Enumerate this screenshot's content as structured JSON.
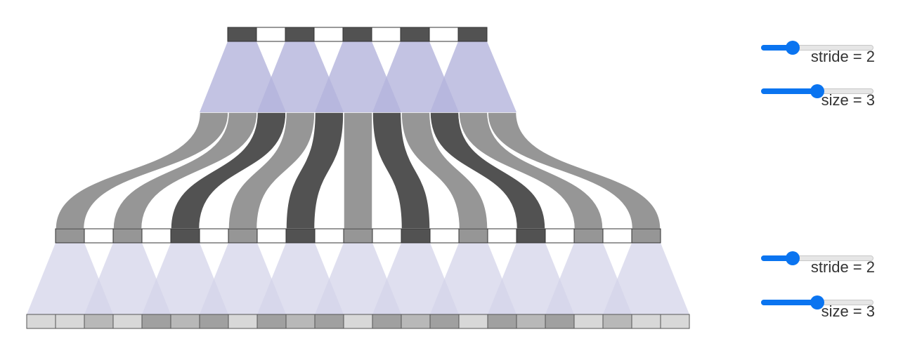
{
  "diagram": {
    "colors": {
      "dark": "#525252",
      "mid": "#969696",
      "white": "#ffffff",
      "kernel_top": "#b4b4dc",
      "kernel_top_overlap": "#8c8cc8",
      "kernel_bottom": "#d4d4ea",
      "kernel_bottom_overlap": "#b0b0da"
    },
    "top_layer": {
      "cells": 9,
      "pattern": [
        "dark",
        "white",
        "dark",
        "white",
        "dark",
        "white",
        "dark",
        "white",
        "dark"
      ]
    },
    "middle_layer": {
      "cells": 21,
      "pattern": [
        "mid",
        "white",
        "mid",
        "white",
        "dark",
        "white",
        "mid",
        "white",
        "dark",
        "white",
        "mid",
        "white",
        "dark",
        "white",
        "mid",
        "white",
        "dark",
        "white",
        "mid",
        "white",
        "mid"
      ]
    },
    "bottom_layer": {
      "cells": 23,
      "shades": [
        "#d8d8d8",
        "#d8d8d8",
        "#b8b8b8",
        "#d8d8d8",
        "#a0a0a0",
        "#b8b8b8",
        "#a0a0a0",
        "#d8d8d8",
        "#a0a0a0",
        "#b8b8b8",
        "#a0a0a0",
        "#d8d8d8",
        "#a0a0a0",
        "#b8b8b8",
        "#a0a0a0",
        "#d8d8d8",
        "#a0a0a0",
        "#b8b8b8",
        "#a0a0a0",
        "#d8d8d8",
        "#b8b8b8",
        "#d8d8d8",
        "#d8d8d8"
      ]
    },
    "ribbons": [
      {
        "top_strip": 0,
        "mid_cell": 0,
        "color": "mid"
      },
      {
        "top_strip": 1,
        "mid_cell": 2,
        "color": "mid"
      },
      {
        "top_strip": 2,
        "mid_cell": 4,
        "color": "dark"
      },
      {
        "top_strip": 3,
        "mid_cell": 6,
        "color": "mid"
      },
      {
        "top_strip": 4,
        "mid_cell": 8,
        "color": "dark"
      },
      {
        "top_strip": 5,
        "mid_cell": 10,
        "color": "mid"
      },
      {
        "top_strip": 6,
        "mid_cell": 12,
        "color": "dark"
      },
      {
        "top_strip": 7,
        "mid_cell": 14,
        "color": "mid"
      },
      {
        "top_strip": 8,
        "mid_cell": 16,
        "color": "dark"
      },
      {
        "top_strip": 9,
        "mid_cell": 18,
        "color": "mid"
      },
      {
        "top_strip": 10,
        "mid_cell": 20,
        "color": "mid"
      }
    ]
  },
  "controls": [
    {
      "name": "top-stride",
      "label": "stride = 2",
      "value": 2,
      "min": 1,
      "max": 5
    },
    {
      "name": "top-size",
      "label": "size = 3",
      "value": 3,
      "min": 1,
      "max": 5
    },
    {
      "name": "bottom-stride",
      "label": "stride = 2",
      "value": 2,
      "min": 1,
      "max": 5
    },
    {
      "name": "bottom-size",
      "label": "size = 3",
      "value": 3,
      "min": 1,
      "max": 5
    }
  ]
}
